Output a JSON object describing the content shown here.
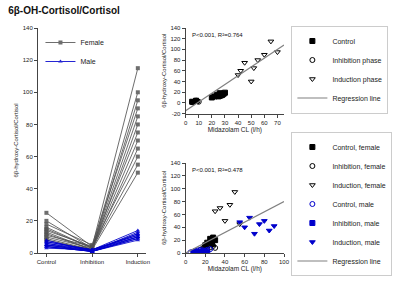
{
  "chart_data": [
    {
      "type": "line",
      "title": "6β-OH-Cortisol/Cortisol",
      "categories": [
        "Control",
        "Inhibition",
        "Induction"
      ],
      "y_label": "6β-hydroxy-Cortisol/Cortisol",
      "ylim": [
        0,
        140
      ],
      "yticks": [
        0,
        20,
        40,
        60,
        80,
        100,
        120,
        140
      ],
      "grid": false,
      "legend": "upper left",
      "series": [
        {
          "name": "Female",
          "color": "#555555",
          "marker": "square",
          "values": [
            [
              25,
              15,
              12,
              18,
              10,
              8,
              14,
              16,
              13,
              11,
              20,
              9
            ],
            [
              4,
              3,
              2,
              5,
              3,
              2,
              4,
              3,
              2,
              4,
              3,
              2
            ],
            [
              115,
              100,
              95,
              90,
              85,
              80,
              75,
              70,
              65,
              60,
              55,
              50
            ]
          ]
        },
        {
          "name": "Male",
          "color": "#0000cc",
          "marker": "triangle-up",
          "values": [
            [
              8,
              6,
              5,
              7,
              4,
              3,
              6,
              5,
              4,
              7,
              5,
              4
            ],
            [
              1,
              2,
              1,
              2,
              1,
              2,
              1,
              2,
              1,
              2,
              1,
              1
            ],
            [
              12,
              10,
              9,
              11,
              8,
              14,
              10,
              11,
              9,
              12,
              10,
              13
            ]
          ]
        }
      ]
    },
    {
      "type": "scatter",
      "x_label": "Midazolam CL (l/h)",
      "y_label": "6β-hydroxy-Cortisol/Cortisol",
      "xlim": [
        0,
        75
      ],
      "xticks": [
        0,
        10,
        20,
        30,
        40,
        50,
        60,
        70
      ],
      "ylim": [
        -20,
        140
      ],
      "yticks": [
        -20,
        0,
        20,
        40,
        60,
        80,
        100,
        120,
        140
      ],
      "grid": false,
      "legend": "lower right",
      "annotations": [
        "P<0.001, R²=0.764"
      ],
      "series": [
        {
          "name": "Control",
          "color": "black",
          "marker": "square",
          "x": [
            5,
            8,
            20,
            22,
            24,
            26,
            25,
            28,
            27,
            26,
            29,
            30,
            28
          ],
          "values": [
            2,
            4,
            10,
            12,
            15,
            18,
            12,
            16,
            14,
            13,
            17,
            19,
            15
          ]
        },
        {
          "name": "Inhibition phase",
          "color": "black",
          "marker": "circle-open",
          "x": [
            5,
            6,
            7,
            8,
            9,
            10
          ],
          "values": [
            1,
            2,
            3,
            4,
            3,
            2
          ]
        },
        {
          "name": "Induction phase",
          "color": "black",
          "marker": "triangle-down-open",
          "x": [
            40,
            42,
            45,
            50,
            52,
            55,
            60,
            65,
            70
          ],
          "values": [
            52,
            60,
            75,
            40,
            65,
            80,
            90,
            115,
            95
          ]
        },
        {
          "name": "Regression line",
          "type": "line",
          "color": "gray",
          "x": [
            0,
            75
          ],
          "values": [
            -15,
            108
          ]
        }
      ]
    },
    {
      "type": "scatter",
      "x_label": "Midazolam CL (l/h)",
      "y_label": "6β-hydroxy-Cortisol/Cortisol",
      "xlim": [
        0,
        100
      ],
      "xticks": [
        0,
        20,
        40,
        60,
        80,
        100
      ],
      "ylim": [
        0,
        140
      ],
      "yticks": [
        0,
        20,
        40,
        60,
        80,
        100,
        120,
        140
      ],
      "grid": false,
      "legend": "lower right",
      "annotations": [
        "P<0.001, R²=0.478"
      ],
      "series": [
        {
          "name": "Control, female",
          "color": "black",
          "marker": "square",
          "x": [
            20,
            22,
            25,
            26,
            28,
            30,
            27,
            26
          ],
          "values": [
            12,
            16,
            22,
            18,
            24,
            20,
            14,
            19
          ]
        },
        {
          "name": "Inhibition, female",
          "color": "black",
          "marker": "circle-open",
          "x": [
            15,
            18,
            20,
            22,
            25,
            28,
            30
          ],
          "values": [
            5,
            8,
            10,
            7,
            9,
            11,
            8
          ]
        },
        {
          "name": "Induction, female",
          "color": "black",
          "marker": "triangle-down-open",
          "x": [
            30,
            35,
            40,
            45,
            50,
            55
          ],
          "values": [
            65,
            70,
            50,
            75,
            95,
            45
          ]
        },
        {
          "name": "Control, male",
          "color": "#0000cc",
          "marker": "circle-open",
          "x": [
            5,
            8,
            10,
            12,
            15,
            18,
            20,
            22,
            25
          ],
          "values": [
            1,
            2,
            3,
            4,
            5,
            4,
            3,
            5,
            6
          ]
        },
        {
          "name": "Inhibition, male",
          "color": "#0000cc",
          "marker": "square",
          "x": [
            8,
            10,
            12,
            15,
            18,
            20,
            22
          ],
          "values": [
            1,
            2,
            1,
            2,
            3,
            2,
            1
          ]
        },
        {
          "name": "Induction, male",
          "color": "#0000cc",
          "marker": "triangle-down",
          "x": [
            55,
            60,
            65,
            70,
            75,
            80,
            85,
            90
          ],
          "values": [
            48,
            40,
            55,
            30,
            45,
            50,
            35,
            42
          ]
        },
        {
          "name": "Regression line",
          "type": "line",
          "color": "gray",
          "x": [
            0,
            100
          ],
          "values": [
            0,
            80
          ]
        }
      ]
    }
  ]
}
